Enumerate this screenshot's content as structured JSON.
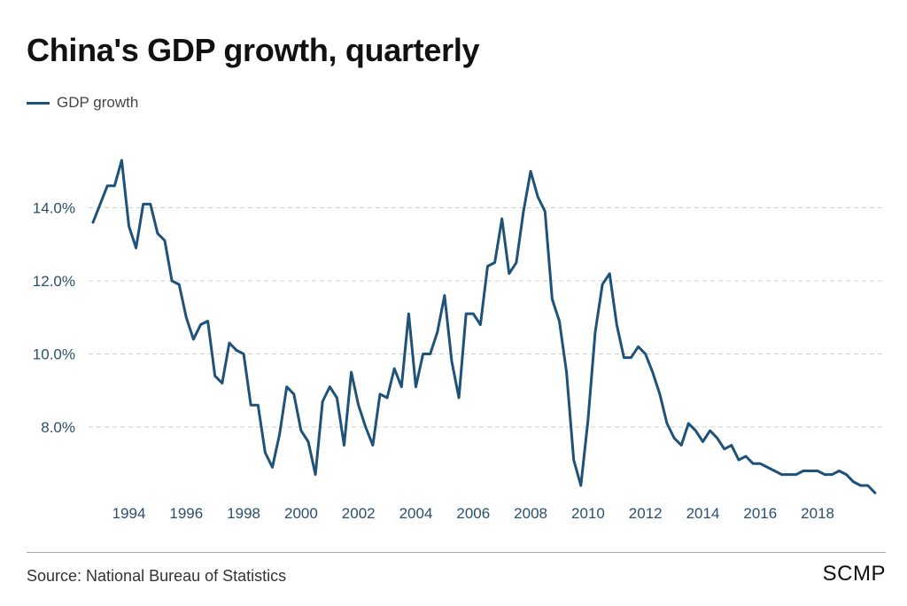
{
  "colors": {
    "series": "#1f5278",
    "tick_text": "#2b4f6e",
    "grid": "#cfcfcf"
  },
  "chart_data": {
    "type": "line",
    "title": "China's GDP growth, quarterly",
    "legend": "top-left",
    "grid": true,
    "xlabel": "",
    "ylabel": "",
    "x_ticks": [
      "1994",
      "1996",
      "1998",
      "2000",
      "2002",
      "2004",
      "2006",
      "2008",
      "2010",
      "2012",
      "2014",
      "2016",
      "2018"
    ],
    "y_ticks": [
      "8.0%",
      "10.0%",
      "12.0%",
      "14.0%"
    ],
    "ylim": [
      6.0,
      16.0
    ],
    "series": [
      {
        "name": "GDP growth",
        "start": "1992-Q4",
        "values": [
          13.6,
          14.1,
          14.6,
          14.6,
          15.3,
          13.5,
          12.9,
          14.1,
          14.1,
          13.3,
          13.1,
          12.0,
          11.9,
          11.0,
          10.4,
          10.8,
          10.9,
          9.4,
          9.2,
          10.3,
          10.1,
          10.0,
          8.6,
          8.6,
          7.3,
          6.9,
          7.8,
          9.1,
          8.9,
          7.9,
          7.6,
          6.7,
          8.7,
          9.1,
          8.8,
          7.5,
          9.5,
          8.6,
          8.0,
          7.5,
          8.9,
          8.8,
          9.6,
          9.1,
          11.1,
          9.1,
          10.0,
          10.0,
          10.6,
          11.6,
          9.8,
          8.8,
          11.1,
          11.1,
          10.8,
          12.4,
          12.5,
          13.7,
          12.2,
          12.5,
          13.9,
          15.0,
          14.3,
          13.9,
          11.5,
          10.9,
          9.5,
          7.1,
          6.4,
          8.2,
          10.6,
          11.9,
          12.2,
          10.8,
          9.9,
          9.9,
          10.2,
          10.0,
          9.5,
          8.9,
          8.1,
          7.7,
          7.5,
          8.1,
          7.9,
          7.6,
          7.9,
          7.7,
          7.4,
          7.5,
          7.1,
          7.2,
          7.0,
          7.0,
          6.9,
          6.8,
          6.7,
          6.7,
          6.7,
          6.8,
          6.8,
          6.8,
          6.7,
          6.7,
          6.8,
          6.7,
          6.5,
          6.4,
          6.4,
          6.2
        ]
      }
    ]
  },
  "footer": {
    "source": "Source: National Bureau of Statistics",
    "brand": "SCMP"
  }
}
